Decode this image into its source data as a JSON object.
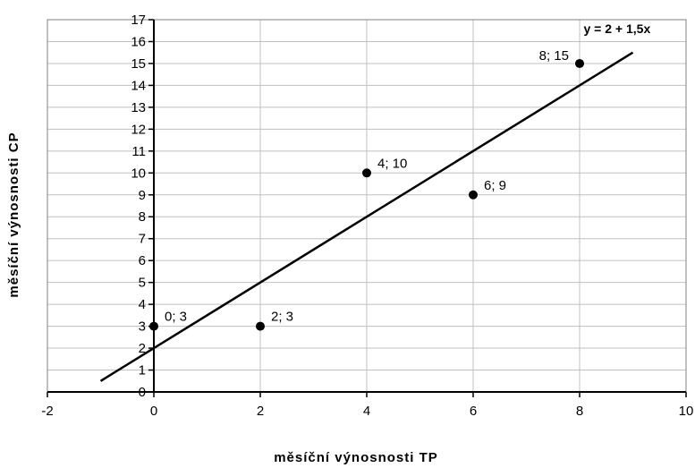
{
  "chart_data": {
    "type": "scatter",
    "xlabel": "měsíční výnosnosti TP",
    "ylabel": "měsíční výnosnosti CP",
    "xlim": [
      -2,
      10
    ],
    "ylim": [
      0,
      17
    ],
    "x_ticks": [
      "-2",
      "0",
      "2",
      "4",
      "6",
      "8",
      "10"
    ],
    "y_ticks": [
      "0",
      "1",
      "2",
      "3",
      "4",
      "5",
      "6",
      "7",
      "8",
      "9",
      "10",
      "11",
      "12",
      "13",
      "14",
      "15",
      "16",
      "17"
    ],
    "grid": true,
    "points": [
      {
        "x": 0,
        "y": 3,
        "label": "0; 3"
      },
      {
        "x": 2,
        "y": 3,
        "label": "2; 3"
      },
      {
        "x": 4,
        "y": 10,
        "label": "4; 10"
      },
      {
        "x": 6,
        "y": 9,
        "label": "6; 9"
      },
      {
        "x": 8,
        "y": 15,
        "label": "8; 15"
      }
    ],
    "trendline": {
      "equation": "y = 2 + 1,5x",
      "intercept": 2,
      "slope": 1.5,
      "x_range": [
        -1,
        9
      ]
    },
    "colors": {
      "marker": "#000000",
      "line": "#000000",
      "grid": "#c0c0c0"
    }
  }
}
